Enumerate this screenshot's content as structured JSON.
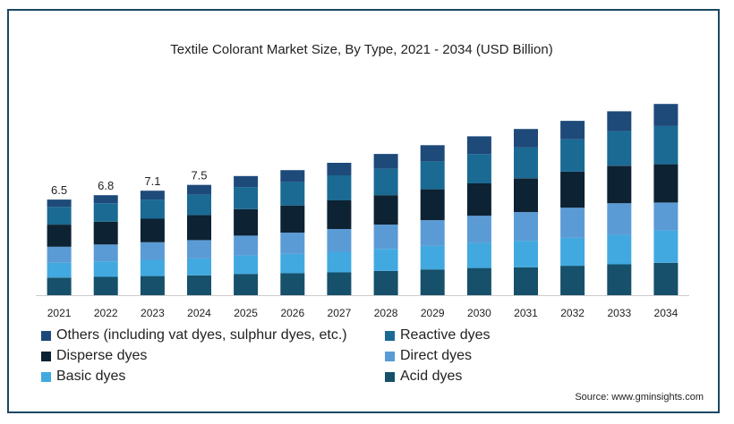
{
  "chart_data": {
    "type": "bar",
    "stacked": true,
    "title": "Textile Colorant Market Size, By Type, 2021 - 2034 (USD Billion)",
    "categories": [
      "2021",
      "2022",
      "2023",
      "2024",
      "2025",
      "2026",
      "2027",
      "2028",
      "2029",
      "2030",
      "2031",
      "2032",
      "2033",
      "2034"
    ],
    "totals": [
      6.5,
      6.8,
      7.1,
      7.5,
      8.1,
      8.5,
      9.0,
      9.6,
      10.2,
      10.8,
      11.3,
      11.9,
      12.5,
      13.0
    ],
    "total_labels": [
      "6.5",
      "6.8",
      "7.1",
      "7.5"
    ],
    "series": [
      {
        "name": "Acid dyes",
        "color": "#16506a",
        "values": [
          1.2,
          1.25,
          1.3,
          1.35,
          1.45,
          1.5,
          1.55,
          1.65,
          1.75,
          1.85,
          1.9,
          2.0,
          2.1,
          2.2
        ]
      },
      {
        "name": "Basic dyes",
        "color": "#41a9e0",
        "values": [
          1.0,
          1.05,
          1.1,
          1.15,
          1.25,
          1.3,
          1.4,
          1.5,
          1.6,
          1.7,
          1.8,
          1.9,
          2.0,
          2.2
        ]
      },
      {
        "name": "Direct dyes",
        "color": "#5b9bd5",
        "values": [
          1.1,
          1.15,
          1.2,
          1.25,
          1.35,
          1.45,
          1.55,
          1.65,
          1.75,
          1.85,
          1.95,
          2.05,
          2.15,
          1.9
        ]
      },
      {
        "name": "Disperse dyes",
        "color": "#0d2233",
        "values": [
          1.5,
          1.55,
          1.6,
          1.7,
          1.8,
          1.85,
          1.95,
          2.0,
          2.1,
          2.2,
          2.3,
          2.45,
          2.55,
          2.6
        ]
      },
      {
        "name": "Reactive dyes",
        "color": "#1a6a94",
        "values": [
          1.2,
          1.25,
          1.3,
          1.4,
          1.5,
          1.6,
          1.7,
          1.8,
          1.9,
          2.0,
          2.1,
          2.2,
          2.35,
          2.6
        ]
      },
      {
        "name": "Others (including vat dyes, sulphur dyes, etc.)",
        "color": "#1e4a7a",
        "values": [
          0.5,
          0.55,
          0.6,
          0.65,
          0.75,
          0.8,
          0.85,
          1.0,
          1.1,
          1.2,
          1.25,
          1.25,
          1.35,
          1.5
        ]
      }
    ],
    "ylim": [
      0,
      13.5
    ],
    "grid": false,
    "legend": {
      "placement": "bottom",
      "order": [
        "Others (including vat dyes, sulphur dyes, etc.)",
        "Reactive dyes",
        "Disperse dyes",
        "Direct dyes",
        "Basic dyes",
        "Acid dyes"
      ]
    }
  },
  "source": "Source: www.gminsights.com"
}
